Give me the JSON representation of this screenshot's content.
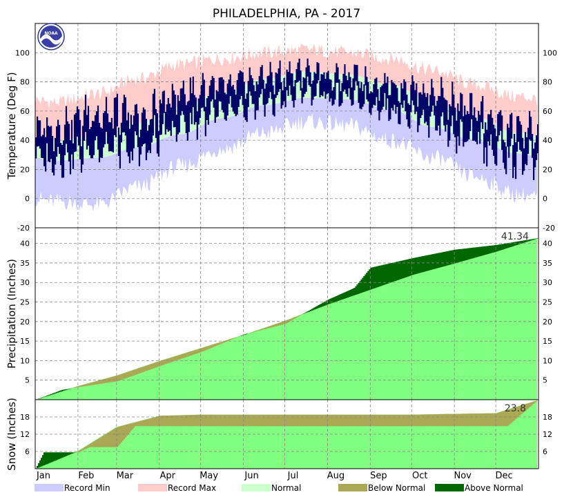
{
  "chart_data": [
    {
      "type": "area",
      "panel": "temperature",
      "title": "PHILADELPHIA, PA - 2017",
      "ylabel": "Temperature (Deg F)",
      "ylim": [
        -20,
        120
      ],
      "yticks": [
        -20,
        0,
        20,
        40,
        60,
        80,
        100
      ],
      "grid": true,
      "normal_high": [
        {
          "month": "Jan",
          "value": 40
        },
        {
          "month": "Feb",
          "value": 43
        },
        {
          "month": "Mar",
          "value": 52
        },
        {
          "month": "Apr",
          "value": 63
        },
        {
          "month": "May",
          "value": 73
        },
        {
          "month": "Jun",
          "value": 82
        },
        {
          "month": "Jul",
          "value": 87
        },
        {
          "month": "Aug",
          "value": 85
        },
        {
          "month": "Sep",
          "value": 78
        },
        {
          "month": "Oct",
          "value": 67
        },
        {
          "month": "Nov",
          "value": 56
        },
        {
          "month": "Dec",
          "value": 45
        }
      ],
      "normal_low": [
        {
          "month": "Jan",
          "value": 26
        },
        {
          "month": "Feb",
          "value": 28
        },
        {
          "month": "Mar",
          "value": 35
        },
        {
          "month": "Apr",
          "value": 44
        },
        {
          "month": "May",
          "value": 55
        },
        {
          "month": "Jun",
          "value": 64
        },
        {
          "month": "Jul",
          "value": 69
        },
        {
          "month": "Aug",
          "value": 68
        },
        {
          "month": "Sep",
          "value": 61
        },
        {
          "month": "Oct",
          "value": 49
        },
        {
          "month": "Nov",
          "value": 40
        },
        {
          "month": "Dec",
          "value": 31
        }
      ],
      "record_max": [
        {
          "month": "Jan",
          "value": 66
        },
        {
          "month": "Feb",
          "value": 72
        },
        {
          "month": "Mar",
          "value": 82
        },
        {
          "month": "Apr",
          "value": 92
        },
        {
          "month": "May",
          "value": 96
        },
        {
          "month": "Jun",
          "value": 100
        },
        {
          "month": "Jul",
          "value": 102
        },
        {
          "month": "Aug",
          "value": 100
        },
        {
          "month": "Sep",
          "value": 96
        },
        {
          "month": "Oct",
          "value": 88
        },
        {
          "month": "Nov",
          "value": 78
        },
        {
          "month": "Dec",
          "value": 70
        }
      ],
      "record_min": [
        {
          "month": "Jan",
          "value": -2
        },
        {
          "month": "Feb",
          "value": -4
        },
        {
          "month": "Mar",
          "value": 8
        },
        {
          "month": "Apr",
          "value": 22
        },
        {
          "month": "May",
          "value": 34
        },
        {
          "month": "Jun",
          "value": 45
        },
        {
          "month": "Jul",
          "value": 53
        },
        {
          "month": "Aug",
          "value": 50
        },
        {
          "month": "Sep",
          "value": 40
        },
        {
          "month": "Oct",
          "value": 28
        },
        {
          "month": "Nov",
          "value": 15
        },
        {
          "month": "Dec",
          "value": 3
        }
      ],
      "observed_monthly_range": [
        {
          "month": "Jan",
          "high": 62,
          "low": 14
        },
        {
          "month": "Feb",
          "high": 74,
          "low": 20
        },
        {
          "month": "Mar",
          "high": 70,
          "low": 18
        },
        {
          "month": "Apr",
          "high": 86,
          "low": 36
        },
        {
          "month": "May",
          "high": 88,
          "low": 44
        },
        {
          "month": "Jun",
          "high": 94,
          "low": 54
        },
        {
          "month": "Jul",
          "high": 96,
          "low": 64
        },
        {
          "month": "Aug",
          "high": 92,
          "low": 60
        },
        {
          "month": "Sep",
          "high": 88,
          "low": 52
        },
        {
          "month": "Oct",
          "high": 86,
          "low": 40
        },
        {
          "month": "Nov",
          "high": 72,
          "low": 24
        },
        {
          "month": "Dec",
          "high": 62,
          "low": 12
        }
      ]
    },
    {
      "type": "area",
      "panel": "precipitation",
      "ylabel": "Precipitation (Inches)",
      "ylim": [
        0,
        44
      ],
      "yticks": [
        5,
        10,
        15,
        20,
        25,
        30,
        35,
        40
      ],
      "grid": true,
      "annotation": "41.34",
      "normal_cumulative": [
        {
          "date": "Jan 1",
          "value": 0
        },
        {
          "date": "Feb 1",
          "value": 3.5
        },
        {
          "date": "Mar 1",
          "value": 6.2
        },
        {
          "date": "Apr 1",
          "value": 9.9
        },
        {
          "date": "May 1",
          "value": 13.2
        },
        {
          "date": "Jun 1",
          "value": 16.6
        },
        {
          "date": "Jul 1",
          "value": 20.2
        },
        {
          "date": "Aug 1",
          "value": 24.4
        },
        {
          "date": "Sep 1",
          "value": 28.2
        },
        {
          "date": "Oct 1",
          "value": 31.9
        },
        {
          "date": "Nov 1",
          "value": 34.9
        },
        {
          "date": "Dec 1",
          "value": 37.9
        },
        {
          "date": "Dec 31",
          "value": 41.3
        }
      ],
      "observed_cumulative": [
        {
          "date": "Jan 1",
          "value": 0
        },
        {
          "date": "Jan 20",
          "value": 2.5
        },
        {
          "date": "Feb 1",
          "value": 3.2
        },
        {
          "date": "Mar 1",
          "value": 4.7
        },
        {
          "date": "Apr 1",
          "value": 8.6
        },
        {
          "date": "May 1",
          "value": 12.2
        },
        {
          "date": "Jun 1",
          "value": 16.7
        },
        {
          "date": "Jul 1",
          "value": 19.4
        },
        {
          "date": "Aug 1",
          "value": 25.6
        },
        {
          "date": "Aug 20",
          "value": 28.6
        },
        {
          "date": "Sep 1",
          "value": 33.8
        },
        {
          "date": "Oct 1",
          "value": 36.2
        },
        {
          "date": "Nov 1",
          "value": 38.4
        },
        {
          "date": "Dec 1",
          "value": 39.6
        },
        {
          "date": "Dec 31",
          "value": 41.34
        }
      ]
    },
    {
      "type": "area",
      "panel": "snow",
      "ylabel": "Snow (Inches)",
      "ylim": [
        0,
        24
      ],
      "yticks": [
        6,
        12,
        18
      ],
      "grid": true,
      "annotation": "23.8",
      "categories": [
        "Jan",
        "Feb",
        "Mar",
        "Apr",
        "May",
        "Jun",
        "Jul",
        "Aug",
        "Sep",
        "Oct",
        "Nov",
        "Dec"
      ],
      "normal_cumulative": [
        {
          "date": "Jan 1",
          "value": 0
        },
        {
          "date": "Feb 1",
          "value": 6.2
        },
        {
          "date": "Mar 1",
          "value": 14.5
        },
        {
          "date": "Apr 1",
          "value": 18.4
        },
        {
          "date": "May 1",
          "value": 18.8
        },
        {
          "date": "Oct 1",
          "value": 18.8
        },
        {
          "date": "Dec 1",
          "value": 19.3
        },
        {
          "date": "Dec 31",
          "value": 23.8
        }
      ],
      "observed_cumulative": [
        {
          "date": "Jan 1",
          "value": 0
        },
        {
          "date": "Jan 7",
          "value": 5.7
        },
        {
          "date": "Feb 1",
          "value": 5.7
        },
        {
          "date": "Feb 9",
          "value": 7.5
        },
        {
          "date": "Mar 1",
          "value": 7.5
        },
        {
          "date": "Mar 14",
          "value": 14.8
        },
        {
          "date": "Dec 9",
          "value": 14.8
        },
        {
          "date": "Dec 31",
          "value": 23.8
        }
      ]
    }
  ],
  "legend": [
    {
      "label": "Record Min",
      "color": "#ccccff"
    },
    {
      "label": "Record Max",
      "color": "#ffcccc"
    },
    {
      "label": "Normal",
      "color": "#ccffcc"
    },
    {
      "label": "Below Normal",
      "color": "#aaa855"
    },
    {
      "label": "Above Normal",
      "color": "#006600"
    }
  ],
  "colors": {
    "record_min": "#ccccff",
    "record_max": "#ffcccc",
    "normal_temp": "#ccffcc",
    "observed_temp": "#000066",
    "normal_precip": "#80ff80",
    "below_normal": "#aaa855",
    "above_normal": "#006600"
  },
  "logo": {
    "text": "NOAA",
    "icon": "noaa-logo-icon"
  }
}
